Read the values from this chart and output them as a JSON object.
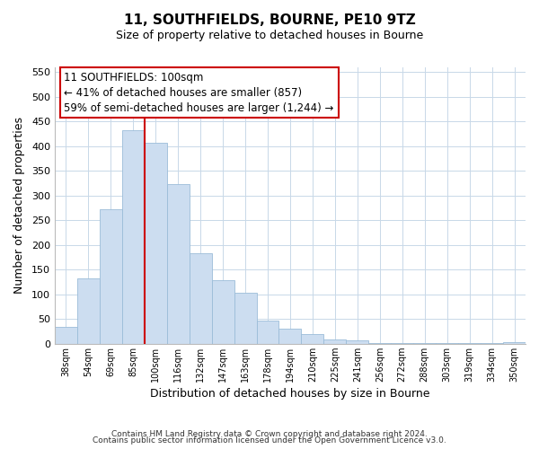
{
  "title": "11, SOUTHFIELDS, BOURNE, PE10 9TZ",
  "subtitle": "Size of property relative to detached houses in Bourne",
  "xlabel": "Distribution of detached houses by size in Bourne",
  "ylabel": "Number of detached properties",
  "bar_color": "#ccddf0",
  "bar_edgecolor": "#9bbcd8",
  "marker_line_color": "#cc0000",
  "marker_index": 4,
  "categories": [
    "38sqm",
    "54sqm",
    "69sqm",
    "85sqm",
    "100sqm",
    "116sqm",
    "132sqm",
    "147sqm",
    "163sqm",
    "178sqm",
    "194sqm",
    "210sqm",
    "225sqm",
    "241sqm",
    "256sqm",
    "272sqm",
    "288sqm",
    "303sqm",
    "319sqm",
    "334sqm",
    "350sqm"
  ],
  "values": [
    35,
    133,
    273,
    433,
    407,
    323,
    184,
    128,
    103,
    46,
    30,
    20,
    8,
    7,
    1,
    2,
    1,
    1,
    1,
    1,
    4
  ],
  "ylim": [
    0,
    560
  ],
  "yticks": [
    0,
    50,
    100,
    150,
    200,
    250,
    300,
    350,
    400,
    450,
    500,
    550
  ],
  "ann_line1": "11 SOUTHFIELDS: 100sqm",
  "ann_line2": "← 41% of detached houses are smaller (857)",
  "ann_line3": "59% of semi-detached houses are larger (1,244) →",
  "footer1": "Contains HM Land Registry data © Crown copyright and database right 2024.",
  "footer2": "Contains public sector information licensed under the Open Government Licence v3.0.",
  "background_color": "#ffffff",
  "grid_color": "#c8d8e8"
}
